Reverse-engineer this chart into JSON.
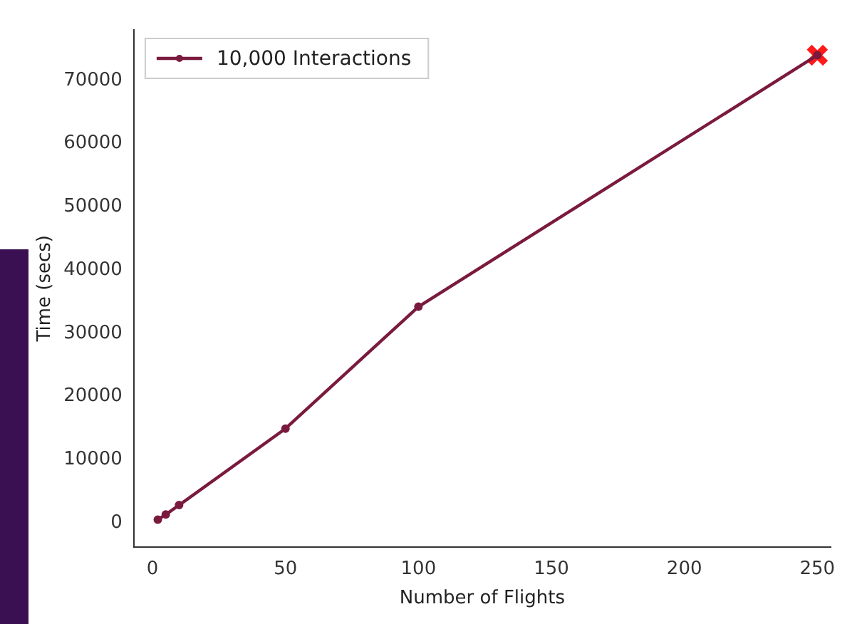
{
  "chart_data": {
    "type": "line",
    "xlabel": "Number of Flights",
    "ylabel": "Time (secs)",
    "xlim": [
      -7,
      255
    ],
    "xticks": [
      0,
      50,
      100,
      150,
      200,
      250
    ],
    "ylim": [
      -3800,
      78000
    ],
    "yticks": [
      0,
      10000,
      20000,
      30000,
      40000,
      50000,
      60000,
      70000
    ],
    "grid": false,
    "legend": "top left",
    "marker": "circle",
    "line_style": "solid",
    "series": [
      {
        "name": "10,000 Interactions",
        "color": "#7a1a3e",
        "x": [
          2,
          5,
          10,
          50,
          100,
          250
        ],
        "values": [
          500,
          1300,
          2800,
          14900,
          34200,
          74000
        ]
      },
      {
        "type": "scatter",
        "marker": "cross",
        "color": "#ff1a1a",
        "x": [
          250
        ],
        "values": [
          74000
        ]
      }
    ]
  }
}
